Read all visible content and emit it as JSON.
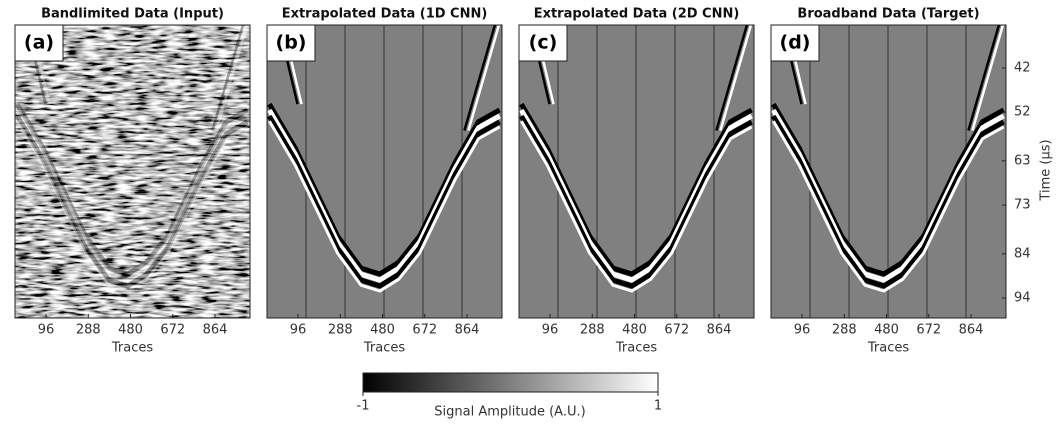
{
  "chart_data": [
    {
      "type": "image",
      "title": "Bandlimited Data (Input)",
      "panel_label": "(a)",
      "x_label": "Traces",
      "xlim": [
        -45,
        1023
      ],
      "xticks": [
        96,
        288,
        480,
        672,
        864
      ]
    },
    {
      "type": "image",
      "title": "Extrapolated Data (1D CNN)",
      "panel_label": "(b)",
      "x_label": "Traces",
      "xlim": [
        -45,
        1023
      ],
      "xticks": [
        96,
        288,
        480,
        672,
        864
      ]
    },
    {
      "type": "image",
      "title": "Extrapolated Data (2D CNN)",
      "panel_label": "(c)",
      "x_label": "Traces",
      "xlim": [
        -45,
        1023
      ],
      "xticks": [
        96,
        288,
        480,
        672,
        864
      ]
    },
    {
      "type": "image",
      "title": "Broadband Data (Target)",
      "panel_label": "(d)",
      "x_label": "Traces",
      "xlim": [
        -45,
        1023
      ],
      "xticks": [
        96,
        288,
        480,
        672,
        864
      ],
      "y_label": "Time (μs)",
      "ylim": [
        98.5,
        32.3
      ],
      "yticks": [
        42,
        52,
        63,
        73,
        84,
        94
      ]
    }
  ],
  "colorbar": {
    "label": "Signal Amplitude (A.U.)",
    "range": [
      -1,
      1
    ],
    "ticks": [
      -1,
      1
    ]
  }
}
